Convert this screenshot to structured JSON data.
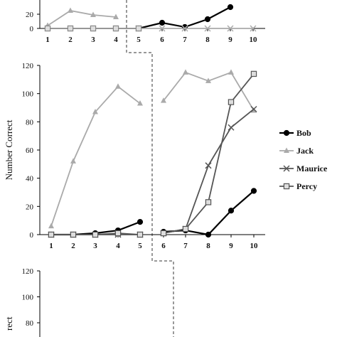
{
  "chart_data": [
    {
      "type": "line",
      "panel": "top (partially visible)",
      "ylabel": "",
      "ylim": [
        0,
        120
      ],
      "y_ticks_visible": [
        "20",
        "0"
      ],
      "x_ticks": [
        "1",
        "2",
        "3",
        "4",
        "5",
        "6",
        "7",
        "8",
        "9",
        "10"
      ],
      "phase_split_after": 4,
      "series": [
        {
          "name": "Bob",
          "color": "#000000",
          "marker": "circle",
          "x": [
            5,
            6,
            7,
            8,
            9
          ],
          "y": [
            0,
            8,
            2,
            13,
            30
          ]
        },
        {
          "name": "Jack",
          "color": "#aaaaaa",
          "marker": "triangle",
          "x": [
            1,
            2,
            3,
            4
          ],
          "y": [
            4,
            25,
            19,
            16
          ]
        },
        {
          "name": "Maurice",
          "color": "#aaaaaa",
          "marker": "x",
          "x": [
            5,
            6,
            7,
            8,
            9,
            10
          ],
          "y": [
            0,
            0,
            0,
            0,
            0,
            0
          ]
        },
        {
          "name": "Percy",
          "color": "#888888",
          "marker": "square",
          "x": [
            1,
            2,
            3,
            4,
            5
          ],
          "y": [
            0,
            0,
            0,
            0,
            0
          ]
        }
      ]
    },
    {
      "type": "line",
      "panel": "middle",
      "ylabel": "Number Correct",
      "ylim": [
        0,
        120
      ],
      "y_ticks": [
        "0",
        "20",
        "40",
        "60",
        "80",
        "100",
        "120"
      ],
      "x_ticks": [
        "1",
        "2",
        "3",
        "4",
        "5",
        "6",
        "7",
        "8",
        "9",
        "10"
      ],
      "phase_split_after": 5,
      "series": [
        {
          "name": "Bob",
          "color": "#000000",
          "marker": "circle",
          "segments": [
            {
              "x": [
                1,
                2,
                3,
                4,
                5
              ],
              "y": [
                0,
                0,
                1,
                3,
                9
              ]
            },
            {
              "x": [
                6,
                7,
                8,
                9,
                10
              ],
              "y": [
                2,
                3,
                0,
                17,
                31
              ]
            }
          ]
        },
        {
          "name": "Jack",
          "color": "#aaaaaa",
          "marker": "triangle",
          "segments": [
            {
              "x": [
                1,
                2,
                3,
                4,
                5
              ],
              "y": [
                6,
                52,
                87,
                105,
                93
              ]
            },
            {
              "x": [
                6,
                7,
                8,
                9,
                10
              ],
              "y": [
                95,
                115,
                109,
                115,
                88
              ]
            }
          ]
        },
        {
          "name": "Maurice",
          "color": "#555555",
          "marker": "x",
          "segments": [
            {
              "x": [
                1,
                2,
                3,
                4,
                5
              ],
              "y": [
                0,
                0,
                0,
                0,
                0
              ]
            },
            {
              "x": [
                6,
                7,
                8,
                9,
                10
              ],
              "y": [
                1,
                4,
                49,
                76,
                89
              ]
            }
          ]
        },
        {
          "name": "Percy",
          "color": "#555555",
          "marker": "square",
          "segments": [
            {
              "x": [
                1,
                2,
                3,
                4,
                5
              ],
              "y": [
                0,
                0,
                0,
                1,
                0
              ]
            },
            {
              "x": [
                6,
                7,
                8,
                9,
                10
              ],
              "y": [
                1,
                4,
                23,
                94,
                114
              ]
            }
          ]
        }
      ]
    },
    {
      "type": "line",
      "panel": "bottom (partially visible)",
      "ylabel": "Number Correct",
      "ylabel_visible": "rect",
      "ylim": [
        0,
        120
      ],
      "y_ticks_visible": [
        "120",
        "100",
        "80"
      ],
      "series": []
    }
  ],
  "legend": {
    "placement": "right",
    "entries": [
      {
        "name": "Bob",
        "color": "#000000",
        "marker": "circle"
      },
      {
        "name": "Jack",
        "color": "#aaaaaa",
        "marker": "triangle"
      },
      {
        "name": "Maurice",
        "color": "#555555",
        "marker": "x"
      },
      {
        "name": "Percy",
        "color": "#555555",
        "marker": "square"
      }
    ]
  }
}
